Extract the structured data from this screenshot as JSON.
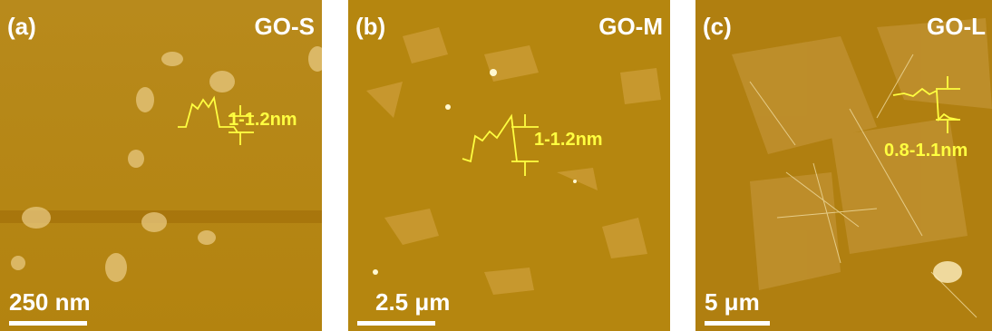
{
  "panels": [
    {
      "label": "(a)",
      "sample": "GO-S",
      "height": "1-1.2nm",
      "scale_bar": "250 nm"
    },
    {
      "label": "(b)",
      "sample": "GO-M",
      "height": "1-1.2nm",
      "scale_bar": "2.5 μm"
    },
    {
      "label": "(c)",
      "sample": "GO-L",
      "height": "0.8-1.1nm",
      "scale_bar": "5 μm"
    }
  ]
}
